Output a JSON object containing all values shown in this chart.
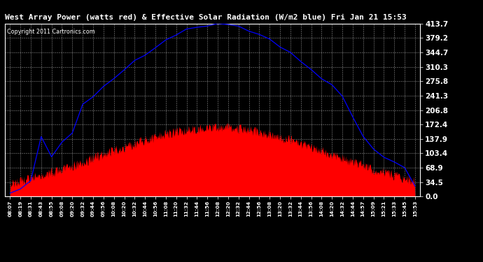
{
  "title": "West Array Power (watts red) & Effective Solar Radiation (W/m2 blue) Fri Jan 21 15:53",
  "copyright": "Copyright 2011 Cartronics.com",
  "bg_color": "#000000",
  "plot_bg_color": "#000000",
  "grid_color": "#ffffff",
  "title_color": "#ffffff",
  "copyright_color": "#ffffff",
  "red_color": "#ff0000",
  "blue_color": "#0000ff",
  "y_ticks": [
    0.0,
    34.5,
    68.9,
    103.4,
    137.9,
    172.4,
    206.8,
    241.3,
    275.8,
    310.3,
    344.7,
    379.2,
    413.7
  ],
  "y_max": 413.7,
  "x_labels": [
    "08:07",
    "08:19",
    "08:31",
    "08:43",
    "08:55",
    "09:08",
    "09:20",
    "09:32",
    "09:44",
    "09:56",
    "10:08",
    "10:20",
    "10:32",
    "10:44",
    "10:56",
    "11:08",
    "11:20",
    "11:32",
    "11:44",
    "11:56",
    "12:08",
    "12:20",
    "12:32",
    "12:44",
    "12:56",
    "13:08",
    "13:20",
    "13:32",
    "13:44",
    "13:56",
    "14:08",
    "14:20",
    "14:32",
    "14:44",
    "14:57",
    "15:09",
    "15:21",
    "15:33",
    "15:45",
    "15:53"
  ],
  "blue_peak_idx": 20,
  "blue_peak_val": 413.7,
  "blue_sigma": 11.5,
  "red_peak_idx": 20,
  "red_peak_val": 165.0,
  "red_sigma": 11.0,
  "noise_seed": 42
}
